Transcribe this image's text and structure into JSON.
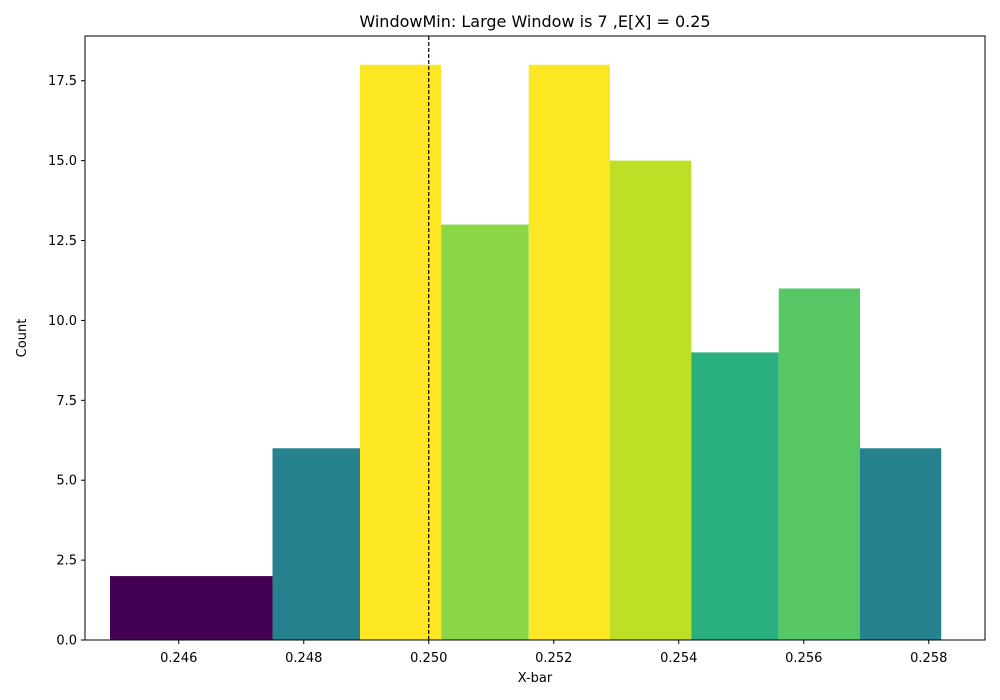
{
  "chart_data": {
    "type": "bar",
    "title": "WindowMin: Large Window is 7 ,E[X] = 0.25",
    "xlabel": "X-bar",
    "ylabel": "Count",
    "xlim": [
      0.2445,
      0.2589
    ],
    "ylim": [
      0,
      18.9
    ],
    "xticks": [
      0.246,
      0.248,
      0.25,
      0.252,
      0.254,
      0.256,
      0.258
    ],
    "xtick_labels": [
      "0.246",
      "0.248",
      "0.250",
      "0.252",
      "0.254",
      "0.256",
      "0.258"
    ],
    "yticks": [
      0,
      2.5,
      5,
      7.5,
      10,
      12.5,
      15,
      17.5
    ],
    "ytick_labels": [
      "0.0",
      "2.5",
      "5.0",
      "7.5",
      "10.0",
      "12.5",
      "15.0",
      "17.5"
    ],
    "bars": [
      {
        "x0": 0.2449,
        "x1": 0.2475,
        "value": 2,
        "color": "#440154"
      },
      {
        "x0": 0.2475,
        "x1": 0.2489,
        "value": 6,
        "color": "#26828e"
      },
      {
        "x0": 0.2489,
        "x1": 0.2502,
        "value": 18,
        "color": "#fde725"
      },
      {
        "x0": 0.2502,
        "x1": 0.2516,
        "value": 13,
        "color": "#8ad647"
      },
      {
        "x0": 0.2516,
        "x1": 0.2529,
        "value": 18,
        "color": "#fde725"
      },
      {
        "x0": 0.2529,
        "x1": 0.2542,
        "value": 15,
        "color": "#bddf26"
      },
      {
        "x0": 0.2542,
        "x1": 0.2556,
        "value": 9,
        "color": "#2ab07f"
      },
      {
        "x0": 0.2556,
        "x1": 0.2569,
        "value": 11,
        "color": "#57c766"
      },
      {
        "x0": 0.2569,
        "x1": 0.2582,
        "value": 6,
        "color": "#26828e"
      }
    ],
    "reference_line": {
      "x": 0.25,
      "style": "dashed",
      "color": "#000000"
    }
  }
}
